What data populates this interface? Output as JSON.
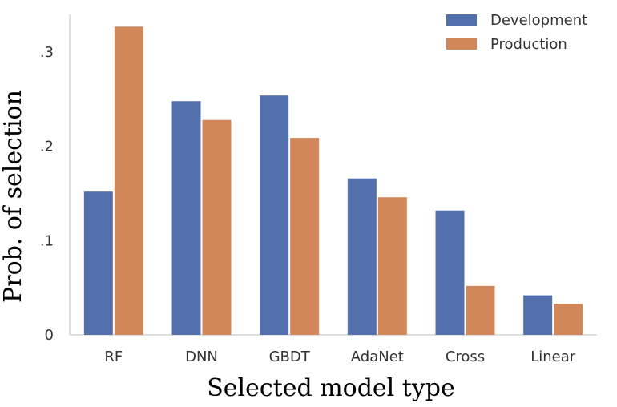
{
  "chart_data": {
    "type": "bar",
    "title": "",
    "xlabel": "Selected model type",
    "ylabel": "Prob. of selection",
    "categories": [
      "RF",
      "DNN",
      "GBDT",
      "AdaNet",
      "Cross",
      "Linear"
    ],
    "series": [
      {
        "name": "Development",
        "color": "#5470AC",
        "values": [
          0.152,
          0.248,
          0.254,
          0.166,
          0.132,
          0.042
        ]
      },
      {
        "name": "Production",
        "color": "#D1875A",
        "values": [
          0.327,
          0.228,
          0.209,
          0.146,
          0.052,
          0.033
        ]
      }
    ],
    "ylim": [
      0,
      0.34
    ],
    "yticks": [
      0,
      0.1,
      0.2,
      0.3
    ],
    "ytick_labels": [
      "0",
      ".1",
      ".2",
      ".3"
    ],
    "grid": false,
    "legend_position": "top-right"
  }
}
